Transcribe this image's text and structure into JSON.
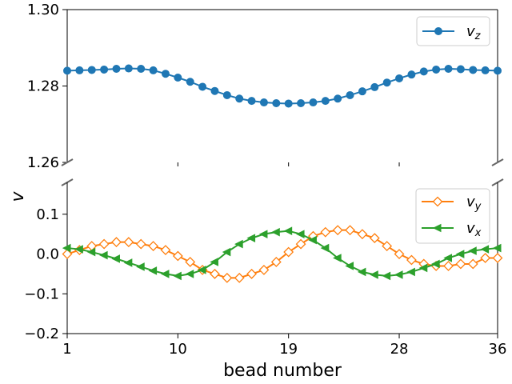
{
  "chart_data": [
    {
      "type": "line",
      "panel": "top",
      "ylim": [
        1.26,
        1.3
      ],
      "yticks": [
        1.26,
        1.28,
        1.3
      ],
      "ytick_labels": [
        "1.26",
        "1.28",
        "1.30"
      ],
      "legend": {
        "placement": "top-right"
      },
      "series": [
        {
          "name": "v_z",
          "label_base": "v",
          "label_sub": "z",
          "color": "#1f77b4",
          "marker": "circle-filled",
          "x": [
            1,
            2,
            3,
            4,
            5,
            6,
            7,
            8,
            9,
            10,
            11,
            12,
            13,
            14,
            15,
            16,
            17,
            18,
            19,
            20,
            21,
            22,
            23,
            24,
            25,
            26,
            27,
            28,
            29,
            30,
            31,
            32,
            33,
            34,
            35,
            36
          ],
          "values": [
            1.284,
            1.2841,
            1.2842,
            1.2843,
            1.2845,
            1.2846,
            1.2845,
            1.2841,
            1.2832,
            1.2822,
            1.2811,
            1.2798,
            1.2787,
            1.2776,
            1.2767,
            1.2761,
            1.2757,
            1.2755,
            1.2754,
            1.2755,
            1.2757,
            1.2761,
            1.2767,
            1.2776,
            1.2786,
            1.2797,
            1.2809,
            1.282,
            1.283,
            1.2838,
            1.2843,
            1.2845,
            1.2844,
            1.2842,
            1.2841,
            1.284
          ]
        }
      ]
    },
    {
      "type": "line",
      "panel": "bottom",
      "ylim": [
        -0.2,
        0.18
      ],
      "yticks": [
        -0.2,
        -0.1,
        0.0,
        0.1
      ],
      "ytick_labels": [
        "−0.2",
        "−0.1",
        "0.0",
        "0.1"
      ],
      "xlabel": "bead number",
      "ylabel": "v",
      "xlim": [
        1,
        36
      ],
      "xticks": [
        1,
        10,
        19,
        28,
        36
      ],
      "xtick_labels": [
        "1",
        "10",
        "19",
        "28",
        "36"
      ],
      "legend": {
        "placement": "top-right"
      },
      "series": [
        {
          "name": "v_y",
          "label_base": "v",
          "label_sub": "y",
          "color": "#ff7f0e",
          "marker": "diamond-open",
          "x": [
            1,
            2,
            3,
            4,
            5,
            6,
            7,
            8,
            9,
            10,
            11,
            12,
            13,
            14,
            15,
            16,
            17,
            18,
            19,
            20,
            21,
            22,
            23,
            24,
            25,
            26,
            27,
            28,
            29,
            30,
            31,
            32,
            33,
            34,
            35,
            36
          ],
          "values": [
            0.0,
            0.01,
            0.02,
            0.025,
            0.03,
            0.03,
            0.025,
            0.02,
            0.01,
            -0.005,
            -0.02,
            -0.04,
            -0.05,
            -0.06,
            -0.06,
            -0.05,
            -0.04,
            -0.02,
            0.005,
            0.025,
            0.045,
            0.055,
            0.06,
            0.06,
            0.05,
            0.04,
            0.02,
            0.0,
            -0.015,
            -0.025,
            -0.03,
            -0.03,
            -0.025,
            -0.025,
            -0.01,
            -0.01
          ]
        },
        {
          "name": "v_x",
          "label_base": "v",
          "label_sub": "x",
          "color": "#2ca02c",
          "marker": "triangle-left-filled",
          "x": [
            1,
            2,
            3,
            4,
            5,
            6,
            7,
            8,
            9,
            10,
            11,
            12,
            13,
            14,
            15,
            16,
            17,
            18,
            19,
            20,
            21,
            22,
            23,
            24,
            25,
            26,
            27,
            28,
            29,
            30,
            31,
            32,
            33,
            34,
            35,
            36
          ],
          "values": [
            0.015,
            0.012,
            0.005,
            -0.003,
            -0.012,
            -0.022,
            -0.032,
            -0.042,
            -0.05,
            -0.055,
            -0.05,
            -0.04,
            -0.02,
            0.005,
            0.025,
            0.04,
            0.05,
            0.055,
            0.058,
            0.05,
            0.035,
            0.015,
            -0.01,
            -0.03,
            -0.045,
            -0.052,
            -0.055,
            -0.052,
            -0.045,
            -0.035,
            -0.025,
            -0.01,
            0.0,
            0.008,
            0.012,
            0.015
          ]
        }
      ]
    }
  ]
}
